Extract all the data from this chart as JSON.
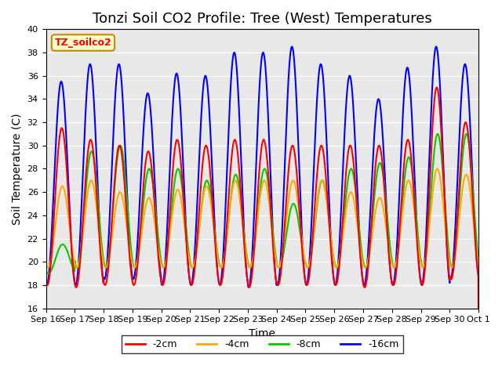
{
  "title": "Tonzi Soil CO2 Profile: Tree (West) Temperatures",
  "xlabel": "Time",
  "ylabel": "Soil Temperature (C)",
  "ylim": [
    16,
    40
  ],
  "xlim_max": 15,
  "legend_label": "TZ_soilco2",
  "legend_entries": [
    "-2cm",
    "-4cm",
    "-8cm",
    "-16cm"
  ],
  "line_colors": [
    "#ff0000",
    "#ffaa00",
    "#00cc00",
    "#0000ff"
  ],
  "background_color": "#e8e8e8",
  "xtick_labels": [
    "Sep 16",
    "Sep 17",
    "Sep 18",
    "Sep 19",
    "Sep 20",
    "Sep 21",
    "Sep 22",
    "Sep 23",
    "Sep 24",
    "Sep 25",
    "Sep 26",
    "Sep 27",
    "Sep 28",
    "Sep 29",
    "Sep 30",
    "Oct 1"
  ],
  "num_days": 15,
  "title_fontsize": 13,
  "axis_fontsize": 10,
  "tick_fontsize": 8,
  "legend_fontsize": 9,
  "linewidth": 1.5,
  "blue_maxes": [
    35.5,
    37.0,
    37.0,
    34.5,
    36.2,
    36.0,
    38.0,
    38.0,
    38.5,
    37.0,
    36.0,
    34.0,
    36.7,
    38.5,
    37.0
  ],
  "red_maxes": [
    31.5,
    30.5,
    30.0,
    29.5,
    30.5,
    30.0,
    30.5,
    30.5,
    30.0,
    30.0,
    30.0,
    30.0,
    30.5,
    35.0,
    32.0
  ],
  "orange_maxes": [
    26.5,
    27.0,
    26.0,
    25.5,
    26.2,
    26.5,
    27.0,
    27.0,
    27.0,
    27.0,
    26.0,
    25.5,
    27.0,
    28.0,
    27.5
  ],
  "green_maxes": [
    21.5,
    29.5,
    30.0,
    28.0,
    28.0,
    27.0,
    27.5,
    28.0,
    25.0,
    27.0,
    28.0,
    28.5,
    29.0,
    31.0,
    31.0
  ],
  "blue_mins": [
    18.0,
    18.0,
    18.5,
    18.5,
    18.0,
    18.0,
    18.0,
    17.8,
    18.0,
    18.0,
    18.0,
    18.0,
    18.0,
    18.0,
    18.5
  ],
  "red_mins": [
    18.0,
    17.8,
    18.0,
    18.0,
    18.0,
    18.0,
    18.0,
    17.8,
    18.0,
    18.0,
    18.0,
    17.8,
    18.0,
    18.0,
    18.5
  ],
  "orange_mins": [
    19.5,
    19.5,
    19.5,
    19.5,
    19.5,
    19.5,
    19.5,
    19.5,
    19.5,
    19.5,
    19.5,
    19.5,
    19.5,
    19.5,
    19.5
  ],
  "green_mins": [
    19.0,
    19.5,
    19.5,
    19.5,
    19.5,
    19.5,
    19.5,
    19.5,
    19.5,
    19.5,
    19.5,
    19.5,
    19.5,
    19.5,
    19.5
  ]
}
